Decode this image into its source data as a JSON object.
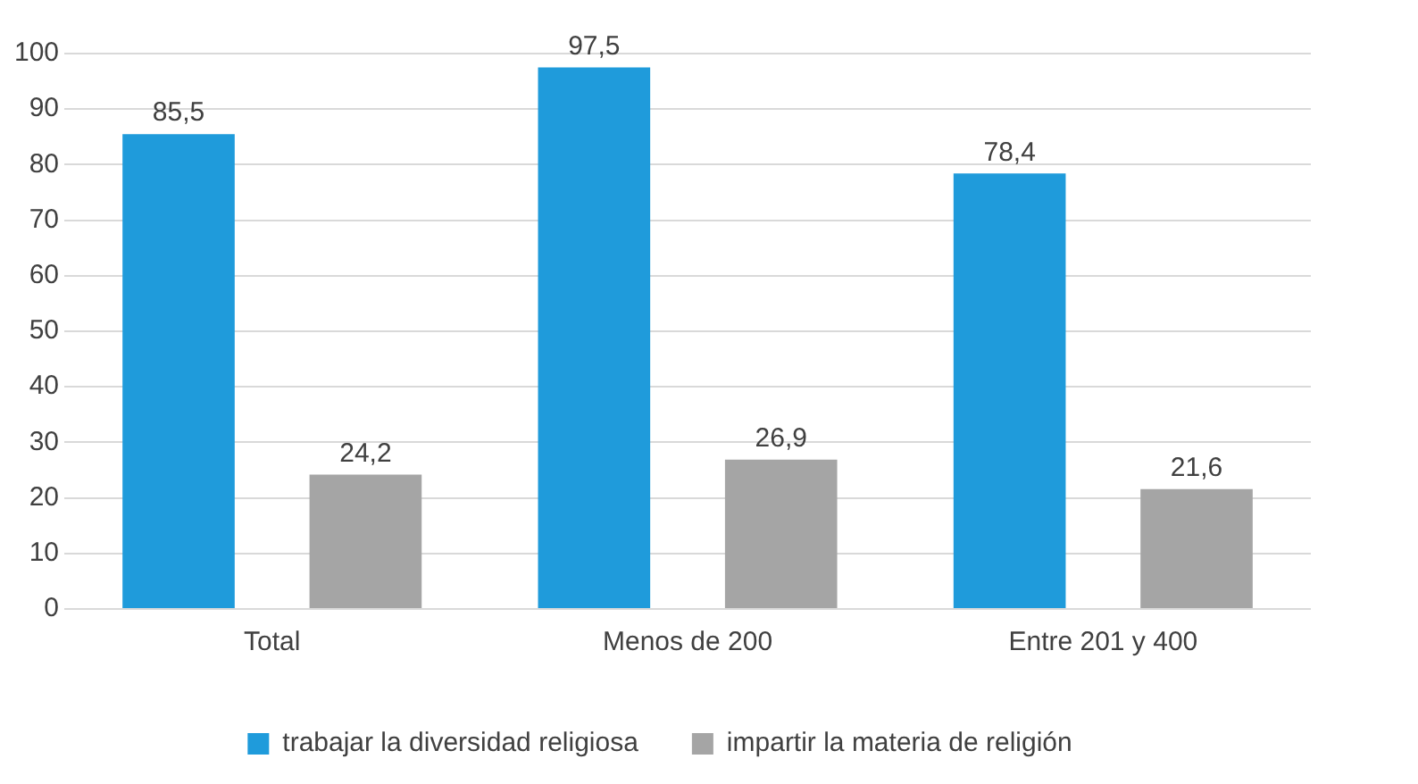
{
  "chart_data": {
    "type": "bar",
    "categories": [
      "Total",
      "Menos de 200",
      "Entre 201 y 400"
    ],
    "series": [
      {
        "name": "trabajar la diversidad religiosa",
        "color": "#1f9bdb",
        "values": [
          85.5,
          97.5,
          78.4
        ],
        "value_labels": [
          "85,5",
          "97,5",
          "78,4"
        ]
      },
      {
        "name": "impartir la materia de religión",
        "color": "#a5a5a5",
        "values": [
          24.2,
          26.9,
          21.6
        ],
        "value_labels": [
          "24,2",
          "26,9",
          "21,6"
        ]
      }
    ],
    "ylim": [
      0,
      100
    ],
    "yticks": [
      0,
      10,
      20,
      30,
      40,
      50,
      60,
      70,
      80,
      90,
      100
    ],
    "grid": "y",
    "legend": "bottom"
  }
}
